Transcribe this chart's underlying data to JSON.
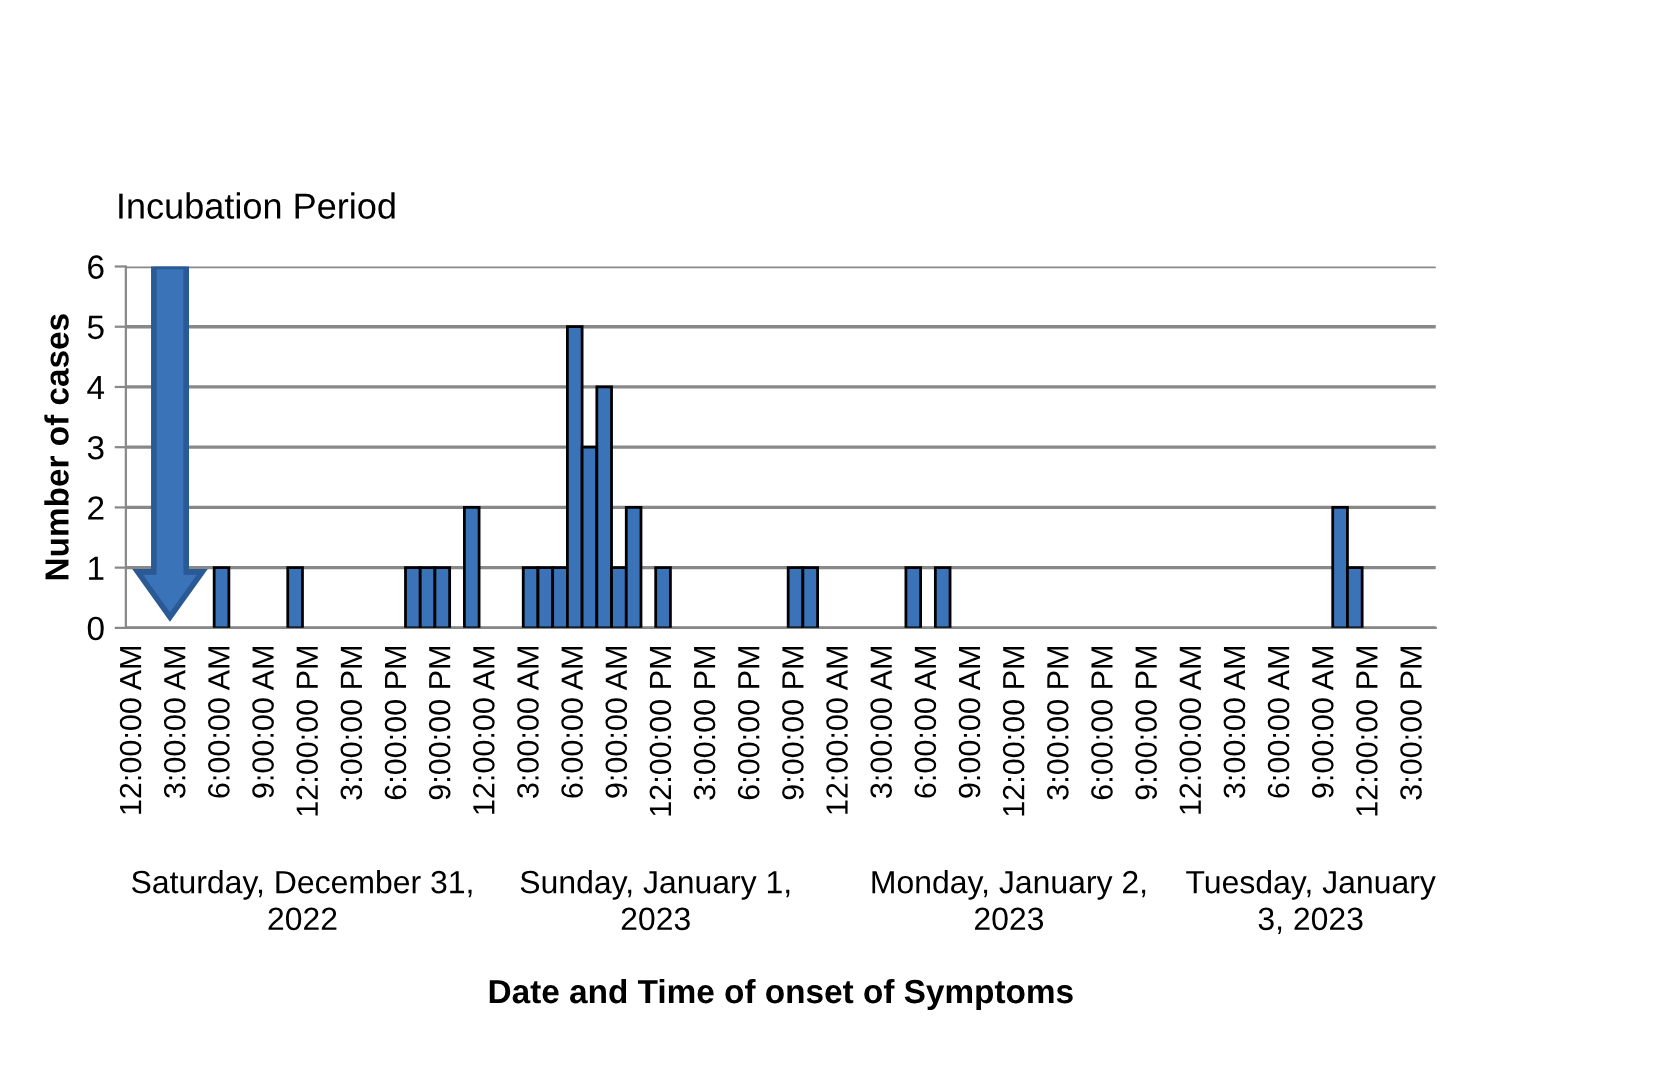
{
  "chart_data": {
    "type": "bar",
    "title": "Incubation Period",
    "xlabel": "Date and Time of onset of Symptoms",
    "ylabel": "Number of cases",
    "categories": [
      "12:00:00 AM",
      null,
      null,
      "3:00:00 AM",
      null,
      null,
      "6:00:00 AM",
      null,
      null,
      "9:00:00 AM",
      null,
      null,
      "12:00:00 PM",
      null,
      null,
      "3:00:00 PM",
      null,
      null,
      "6:00:00 PM",
      null,
      null,
      "9:00:00 PM",
      null,
      null,
      "12:00:00 AM",
      null,
      null,
      "3:00:00 AM",
      null,
      null,
      "6:00:00 AM",
      null,
      null,
      "9:00:00 AM",
      null,
      null,
      "12:00:00 PM",
      null,
      null,
      "3:00:00 PM",
      null,
      null,
      "6:00:00 PM",
      null,
      null,
      "9:00:00 PM",
      null,
      null,
      "12:00:00 AM",
      null,
      null,
      "3:00:00 AM",
      null,
      null,
      "6:00:00 AM",
      null,
      null,
      "9:00:00 AM",
      null,
      null,
      "12:00:00 PM",
      null,
      null,
      "3:00:00 PM",
      null,
      null,
      "6:00:00 PM",
      null,
      null,
      "9:00:00 PM",
      null,
      null,
      "12:00:00 AM",
      null,
      null,
      "3:00:00 AM",
      null,
      null,
      "6:00:00 AM",
      null,
      null,
      "9:00:00 AM",
      null,
      null,
      "12:00:00 PM",
      null,
      null,
      "3:00:00 PM",
      null
    ],
    "values": [
      0,
      0,
      0,
      0,
      0,
      0,
      1,
      0,
      0,
      0,
      0,
      1,
      0,
      0,
      0,
      0,
      0,
      0,
      0,
      1,
      1,
      1,
      0,
      2,
      0,
      0,
      0,
      1,
      1,
      1,
      5,
      3,
      4,
      1,
      2,
      0,
      1,
      0,
      0,
      0,
      0,
      0,
      0,
      0,
      0,
      1,
      1,
      0,
      0,
      0,
      0,
      0,
      0,
      1,
      0,
      1,
      0,
      0,
      0,
      0,
      0,
      0,
      0,
      0,
      0,
      0,
      0,
      0,
      0,
      0,
      0,
      0,
      0,
      0,
      0,
      0,
      0,
      0,
      0,
      0,
      0,
      0,
      2,
      1,
      0,
      0,
      0,
      0,
      0
    ],
    "color": "#3a73b8",
    "ylim": [
      0,
      6
    ],
    "yticks": [
      0,
      1,
      2,
      3,
      4,
      5,
      6
    ],
    "grid": "y",
    "annotations": [
      "Saturday, December 31,\n2022",
      "Sunday, January 1,\n2023",
      "Monday, January 2,\n2023",
      "Tuesday, January\n3, 2023"
    ]
  }
}
